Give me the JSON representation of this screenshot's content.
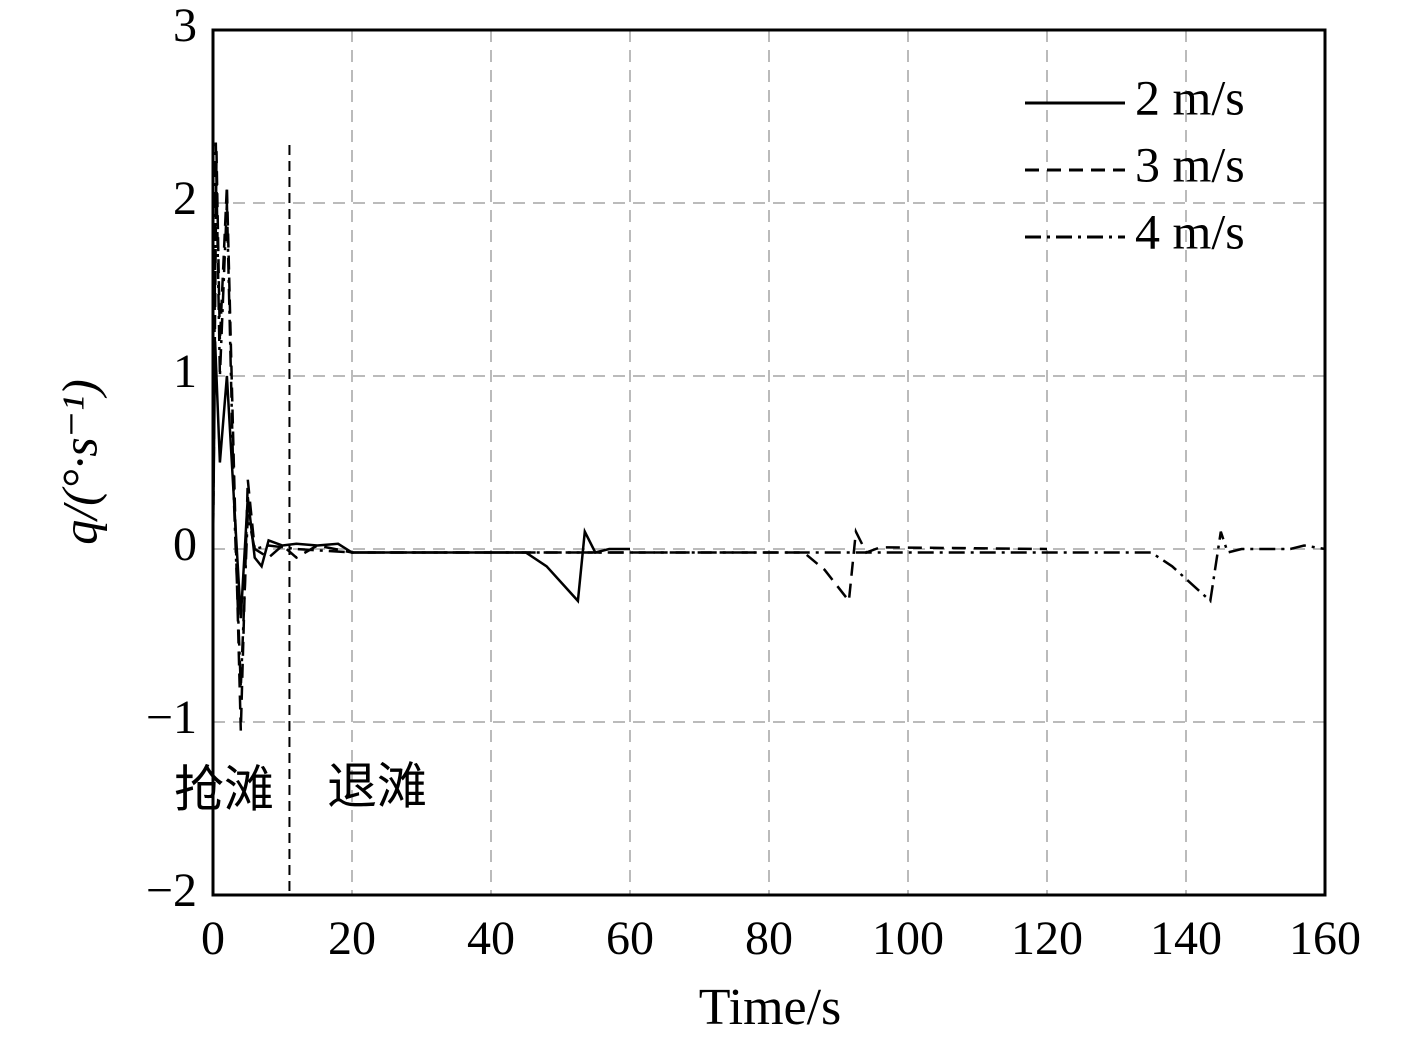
{
  "chart_data": {
    "type": "line",
    "xlabel": "Time/s",
    "ylabel": "q/(°·s⁻¹)",
    "xlim": [
      0,
      160
    ],
    "xticks": [
      0,
      20,
      40,
      60,
      80,
      100,
      120,
      140,
      160
    ],
    "ylim": [
      -2,
      3
    ],
    "yticks": [
      {
        "value": -2,
        "label": "−2"
      },
      {
        "value": -1,
        "label": "−1"
      },
      0,
      1,
      2,
      3
    ],
    "grid": true,
    "legend": "upper right",
    "divider_x": 11,
    "annotations": [
      "抢滩",
      "退滩"
    ],
    "series": [
      {
        "name": "2 m/s",
        "color": "#000000",
        "style": "solid",
        "x": [
          0,
          0.3,
          1,
          2,
          3,
          4,
          5,
          6,
          7,
          8,
          10,
          12,
          15,
          18,
          20,
          45,
          48,
          52.5,
          53.5,
          55,
          57,
          60
        ],
        "values": [
          0,
          1.2,
          0.5,
          1.0,
          0.3,
          -0.4,
          0.3,
          -0.05,
          -0.1,
          0.05,
          0.02,
          0.03,
          0.02,
          0.03,
          -0.02,
          -0.02,
          -0.1,
          -0.3,
          0.1,
          -0.02,
          0,
          0
        ]
      },
      {
        "name": "3 m/s",
        "color": "#000000",
        "style": "dashed",
        "x": [
          0,
          0.5,
          1,
          2,
          3,
          4,
          5,
          6,
          8,
          10,
          12,
          15,
          20,
          85,
          88,
          91.5,
          92.5,
          94,
          96,
          120
        ],
        "values": [
          0,
          2.3,
          1.2,
          2.1,
          0.5,
          -1.05,
          0.4,
          0,
          -0.05,
          0.02,
          -0.05,
          0.02,
          -0.02,
          -0.02,
          -0.12,
          -0.3,
          0.1,
          -0.02,
          0.01,
          0
        ]
      },
      {
        "name": "4 m/s",
        "color": "#000000",
        "style": "dashdot",
        "x": [
          0,
          0.4,
          1,
          2,
          3,
          4,
          5,
          6,
          8,
          12,
          20,
          135,
          138,
          143.5,
          145,
          146,
          148,
          155,
          157,
          160
        ],
        "values": [
          0,
          2.35,
          1.0,
          2.0,
          0.3,
          -0.8,
          0.2,
          0,
          0.02,
          0,
          -0.02,
          -0.02,
          -0.1,
          -0.3,
          0.1,
          -0.02,
          0,
          0,
          0.02,
          0
        ]
      }
    ]
  }
}
